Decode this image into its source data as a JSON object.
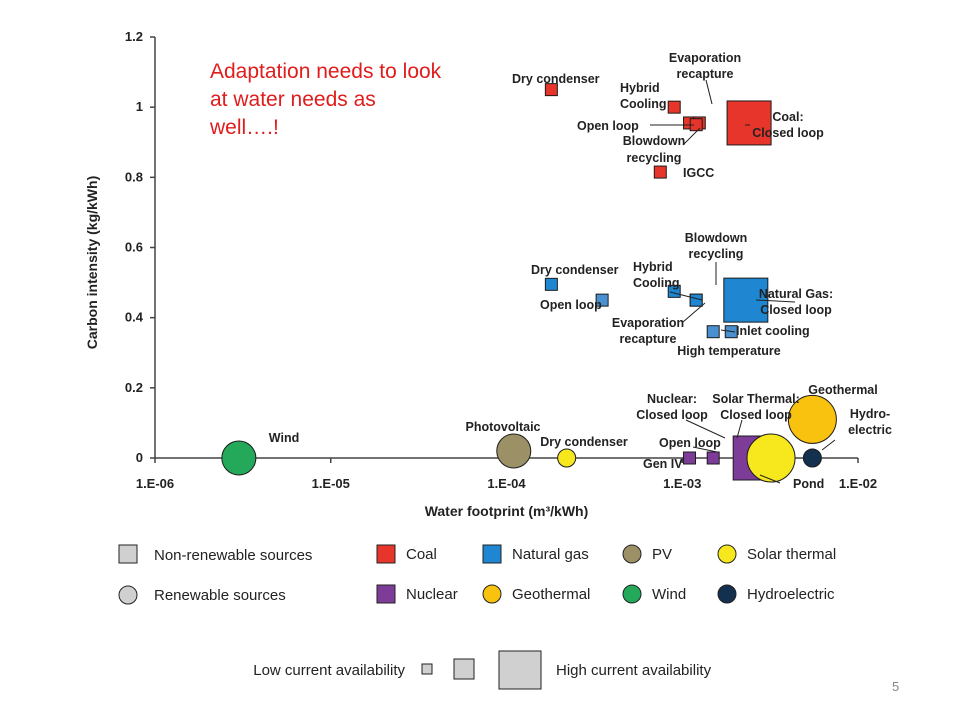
{
  "slide": {
    "note": "Adaptation needs to look at water needs as well….!",
    "page_number": "5"
  },
  "chart_data": {
    "type": "scatter",
    "title": "",
    "xlabel": "Water footprint (m³/kWh)",
    "ylabel": "Carbon intensity (kg/kWh)",
    "x_scale": "log",
    "xlim": [
      1e-06,
      0.01
    ],
    "ylim": [
      0,
      1.2
    ],
    "x_ticks": [
      "1.E-06",
      "1.E-05",
      "1.E-04",
      "1.E-03",
      "1.E-02"
    ],
    "y_ticks": [
      "0",
      "0.2",
      "0.4",
      "0.6",
      "0.8",
      "1",
      "1.2"
    ],
    "grid": false,
    "colors": {
      "coal": "#e8352b",
      "natural_gas": "#1f86d1",
      "natural_gas_light": "#4a8fcf",
      "pv": "#9c9166",
      "solar_thermal": "#f7e81e",
      "nuclear": "#7d3c98",
      "geothermal": "#f8c20f",
      "wind": "#24a85a",
      "hydroelectric": "#14304f"
    },
    "points": [
      {
        "label": "Dry condenser",
        "group": "coal",
        "shape": "square",
        "x": 0.00018,
        "y": 1.05,
        "availability": "low"
      },
      {
        "label": "Hybrid Cooling",
        "group": "coal",
        "shape": "square",
        "x": 0.0009,
        "y": 1.0,
        "availability": "low"
      },
      {
        "label": "Open loop",
        "group": "coal",
        "shape": "square",
        "x": 0.0011,
        "y": 0.955,
        "availability": "low"
      },
      {
        "label": "Evaporation recapture",
        "group": "coal",
        "shape": "square",
        "x": 0.00125,
        "y": 0.955,
        "availability": "low"
      },
      {
        "label": "Coal: Closed loop",
        "group": "coal",
        "shape": "square",
        "x": 0.0024,
        "y": 0.955,
        "availability": "high"
      },
      {
        "label": "Blowdown recycling",
        "group": "coal",
        "shape": "square",
        "x": 0.0012,
        "y": 0.95,
        "availability": "low"
      },
      {
        "label": "IGCC",
        "group": "coal",
        "shape": "square",
        "x": 0.00075,
        "y": 0.815,
        "availability": "low"
      },
      {
        "label": "Dry condenser",
        "group": "natural_gas",
        "shape": "square",
        "x": 0.00018,
        "y": 0.495,
        "availability": "low"
      },
      {
        "label": "Open loop",
        "group": "natural_gas_light",
        "shape": "square",
        "x": 0.00035,
        "y": 0.45,
        "availability": "low"
      },
      {
        "label": "Hybrid Cooling",
        "group": "natural_gas",
        "shape": "square",
        "x": 0.0009,
        "y": 0.475,
        "availability": "low"
      },
      {
        "label": "Evaporation recapture",
        "group": "natural_gas_light",
        "shape": "square",
        "x": 0.0012,
        "y": 0.45,
        "availability": "low"
      },
      {
        "label": "Natural Gas: Closed loop",
        "group": "natural_gas",
        "shape": "square",
        "x": 0.0023,
        "y": 0.45,
        "availability": "high"
      },
      {
        "label": "Blowdown recycling",
        "group": "natural_gas",
        "shape": "square",
        "x": 0.0012,
        "y": 0.45,
        "availability": "low"
      },
      {
        "label": "Inlet cooling",
        "group": "natural_gas_light",
        "shape": "square",
        "x": 0.0019,
        "y": 0.36,
        "availability": "low"
      },
      {
        "label": "High temperature",
        "group": "natural_gas_light",
        "shape": "square",
        "x": 0.0015,
        "y": 0.36,
        "availability": "low"
      },
      {
        "label": "Wind",
        "group": "wind",
        "shape": "circle",
        "x": 3e-06,
        "y": 0.0,
        "availability": "medium"
      },
      {
        "label": "Photovoltaic",
        "group": "pv",
        "shape": "circle",
        "x": 0.00011,
        "y": 0.02,
        "availability": "medium"
      },
      {
        "label": "Dry condenser",
        "group": "solar_thermal",
        "shape": "circle",
        "x": 0.00022,
        "y": 0.0,
        "availability": "low"
      },
      {
        "label": "Nuclear: Closed loop",
        "group": "nuclear",
        "shape": "square",
        "x": 0.0026,
        "y": 0.0,
        "availability": "high"
      },
      {
        "label": "Open loop",
        "group": "nuclear",
        "shape": "square",
        "x": 0.0015,
        "y": 0.0,
        "availability": "low"
      },
      {
        "label": "Gen IV",
        "group": "nuclear",
        "shape": "square",
        "x": 0.0011,
        "y": 0.0,
        "availability": "low"
      },
      {
        "label": "Solar Thermal: Closed loop",
        "group": "solar_thermal",
        "shape": "circle",
        "x": 0.0032,
        "y": 0.0,
        "availability": "high"
      },
      {
        "label": "Geothermal",
        "group": "geothermal",
        "shape": "circle",
        "x": 0.0055,
        "y": 0.11,
        "availability": "high"
      },
      {
        "label": "Hydro-electric",
        "group": "hydroelectric",
        "shape": "circle",
        "x": 0.0055,
        "y": 0.0,
        "availability": "low"
      }
    ],
    "annotations": [
      {
        "text": "Pond",
        "group": "solar_thermal"
      }
    ]
  },
  "legend": {
    "shapes": [
      {
        "label": "Non-renewable sources",
        "shape": "square"
      },
      {
        "label": "Renewable sources",
        "shape": "circle"
      }
    ],
    "groups": [
      {
        "label": "Coal",
        "shape": "square",
        "color": "#e8352b"
      },
      {
        "label": "Natural gas",
        "shape": "square",
        "color": "#1f86d1"
      },
      {
        "label": "PV",
        "shape": "circle",
        "color": "#9c9166"
      },
      {
        "label": "Solar thermal",
        "shape": "circle",
        "color": "#f7e81e"
      },
      {
        "label": "Nuclear",
        "shape": "square",
        "color": "#7d3c98"
      },
      {
        "label": "Geothermal",
        "shape": "circle",
        "color": "#f8c20f"
      },
      {
        "label": "Wind",
        "shape": "circle",
        "color": "#24a85a"
      },
      {
        "label": "Hydroelectric",
        "shape": "circle",
        "color": "#14304f"
      }
    ],
    "size": {
      "low_label": "Low current availability",
      "high_label": "High current availability"
    }
  }
}
